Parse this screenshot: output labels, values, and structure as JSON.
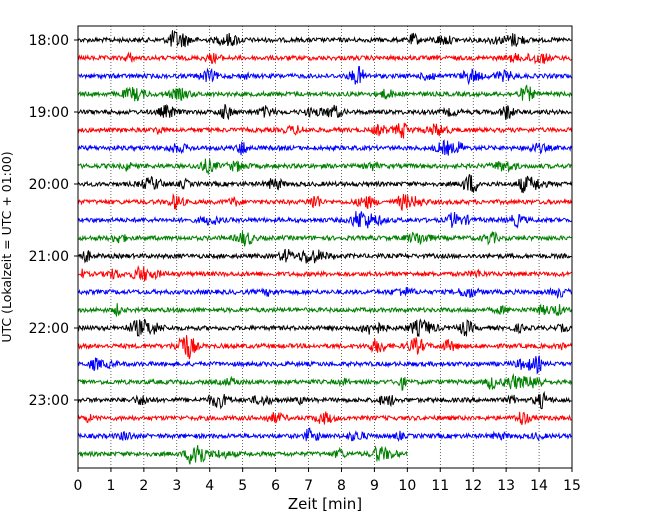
{
  "chart_data": {
    "type": "line",
    "title": "",
    "xlabel": "Zeit  [min]",
    "ylabel": "UTC (Lokalzeit = UTC + 01:00)",
    "xlim": [
      0,
      15
    ],
    "x_ticks": [
      0,
      1,
      2,
      3,
      4,
      5,
      6,
      7,
      8,
      9,
      10,
      11,
      12,
      13,
      14,
      15
    ],
    "x_grid": "dotted vertical at each minute",
    "y_ticks": [
      "18:00",
      "19:00",
      "20:00",
      "21:00",
      "22:00",
      "23:00"
    ],
    "trace_interval_minutes": 15,
    "start_time": "18:00",
    "trace_colors": [
      "#000000",
      "#ff0000",
      "#0000ff",
      "#008000"
    ],
    "traces": [
      {
        "start": "18:00",
        "end_minute": 15,
        "color": "#000000"
      },
      {
        "start": "18:15",
        "end_minute": 15,
        "color": "#ff0000"
      },
      {
        "start": "18:30",
        "end_minute": 15,
        "color": "#0000ff"
      },
      {
        "start": "18:45",
        "end_minute": 15,
        "color": "#008000"
      },
      {
        "start": "19:00",
        "end_minute": 15,
        "color": "#000000"
      },
      {
        "start": "19:15",
        "end_minute": 15,
        "color": "#ff0000"
      },
      {
        "start": "19:30",
        "end_minute": 15,
        "color": "#0000ff"
      },
      {
        "start": "19:45",
        "end_minute": 15,
        "color": "#008000"
      },
      {
        "start": "20:00",
        "end_minute": 15,
        "color": "#000000"
      },
      {
        "start": "20:15",
        "end_minute": 15,
        "color": "#ff0000"
      },
      {
        "start": "20:30",
        "end_minute": 15,
        "color": "#0000ff"
      },
      {
        "start": "20:45",
        "end_minute": 15,
        "color": "#008000"
      },
      {
        "start": "21:00",
        "end_minute": 15,
        "color": "#000000"
      },
      {
        "start": "21:15",
        "end_minute": 15,
        "color": "#ff0000"
      },
      {
        "start": "21:30",
        "end_minute": 15,
        "color": "#0000ff"
      },
      {
        "start": "21:45",
        "end_minute": 15,
        "color": "#008000"
      },
      {
        "start": "22:00",
        "end_minute": 15,
        "color": "#000000"
      },
      {
        "start": "22:15",
        "end_minute": 15,
        "color": "#ff0000"
      },
      {
        "start": "22:30",
        "end_minute": 15,
        "color": "#0000ff"
      },
      {
        "start": "22:45",
        "end_minute": 15,
        "color": "#008000"
      },
      {
        "start": "23:00",
        "end_minute": 15,
        "color": "#000000"
      },
      {
        "start": "23:15",
        "end_minute": 15,
        "color": "#ff0000"
      },
      {
        "start": "23:30",
        "end_minute": 15,
        "color": "#0000ff"
      },
      {
        "start": "23:45",
        "end_minute": 10,
        "color": "#008000"
      }
    ]
  }
}
